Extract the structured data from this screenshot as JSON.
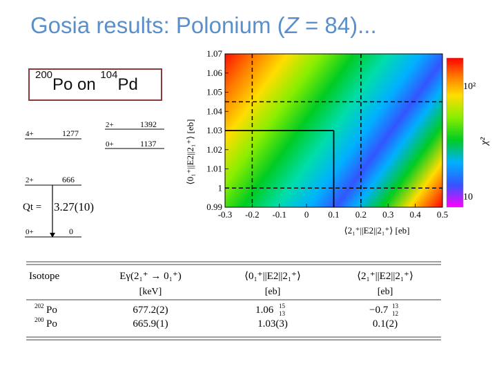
{
  "title": {
    "prefix": "Gosia results: Polonium (",
    "z": "Z",
    "suffix": " = 84)..."
  },
  "reaction": {
    "a1": "200",
    "el1": "Po",
    "mid": " on ",
    "a2": "104",
    "el2": "Pd"
  },
  "levels": {
    "po": [
      {
        "spin": "4+",
        "energy": "1277"
      },
      {
        "spin": "2+",
        "energy": "666"
      },
      {
        "spin": "0+",
        "energy": "0"
      }
    ],
    "pd": [
      {
        "spin": "2+",
        "energy": "1392"
      },
      {
        "spin": "0+",
        "energy": "1137"
      }
    ],
    "qt_label": "Qt =",
    "qt_value": "3.27(10)"
  },
  "chart_data": {
    "type": "heatmap",
    "xlabel": "⟨2₁⁺||E2||2₁⁺⟩ [eb]",
    "ylabel": "⟨0₁⁺||E2||2₁⁺⟩ [eb]",
    "xlim": [
      -0.3,
      0.5
    ],
    "ylim": [
      0.99,
      1.07
    ],
    "x_ticks": [
      "-0.3",
      "-0.2",
      "-0.1",
      "0",
      "0.1",
      "0.2",
      "0.3",
      "0.4",
      "0.5"
    ],
    "y_ticks": [
      "0.99",
      "1",
      "1.01",
      "1.02",
      "1.03",
      "1.04",
      "1.05",
      "1.06",
      "1.07"
    ],
    "colorbar_label": "χ²",
    "colorbar_ticks": [
      "10",
      "10²"
    ],
    "colorscale": [
      "#ff0000",
      "#ff7700",
      "#ffdd00",
      "#88ee00",
      "#00cc22",
      "#00ddaa",
      "#00b0ff",
      "#3355ff",
      "#ff00ff",
      "#ff3399",
      "#ff0000"
    ],
    "result_point": {
      "x": 0.1,
      "y": 1.03
    },
    "dashed_bounds": {
      "x": [
        -0.2,
        0.2
      ],
      "y": [
        1.0,
        1.045
      ]
    }
  },
  "table": {
    "headers": [
      "Isotope",
      "Eγ(2₁⁺ → 0₁⁺)",
      "⟨0₁⁺||E2||2₁⁺⟩",
      "⟨2₁⁺||E2||2₁⁺⟩"
    ],
    "units": [
      "",
      "[keV]",
      "[eb]",
      "[eb]"
    ],
    "rows": [
      {
        "mass": "202",
        "el": "Po",
        "energy": "677.2(2)",
        "m1": "1.06",
        "m1_up": "15",
        "m1_dn": "13",
        "m2": "−0.7",
        "m2_up": "13",
        "m2_dn": "12"
      },
      {
        "mass": "200",
        "el": "Po",
        "energy": "665.9(1)",
        "m1": "1.03(3)",
        "m1_up": "",
        "m1_dn": "",
        "m2": "0.1(2)",
        "m2_up": "",
        "m2_dn": ""
      }
    ]
  }
}
